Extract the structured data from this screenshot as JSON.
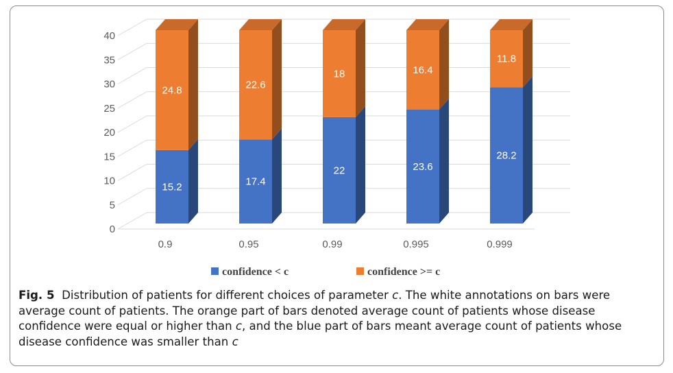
{
  "chart_data": {
    "type": "bar",
    "stacked": true,
    "style": "3d",
    "categories": [
      "0.9",
      "0.95",
      "0.99",
      "0.995",
      "0.999"
    ],
    "series": [
      {
        "name": "confidence < c",
        "values": [
          15.2,
          17.4,
          22,
          23.6,
          28.2
        ],
        "color": "#4472c4"
      },
      {
        "name": "confidence >= c",
        "values": [
          24.8,
          22.6,
          18,
          16.4,
          11.8
        ],
        "color": "#ed7d31"
      }
    ],
    "data_labels": [
      [
        "15.2",
        "17.4",
        "22",
        "23.6",
        "28.2"
      ],
      [
        "24.8",
        "22.6",
        "18",
        "16.4",
        "11.8"
      ]
    ],
    "ylim": [
      0,
      40
    ],
    "yticks": [
      "0",
      "5",
      "10",
      "15",
      "20",
      "25",
      "30",
      "35",
      "40"
    ],
    "grid": true,
    "legend_position": "bottom",
    "title": "",
    "xlabel": "",
    "ylabel": ""
  },
  "caption": {
    "label": "Fig. 5",
    "text_1": "Distribution of patients for different choices of parameter ",
    "param_1": "c",
    "text_2": ". The white annotations on bars were average count of patients. The orange part of bars denoted average count of patients whose disease confidence were equal or higher than ",
    "param_2": "c",
    "text_3": ", and the blue part of bars meant average count of patients whose disease confidence was smaller than ",
    "param_3": "c"
  }
}
